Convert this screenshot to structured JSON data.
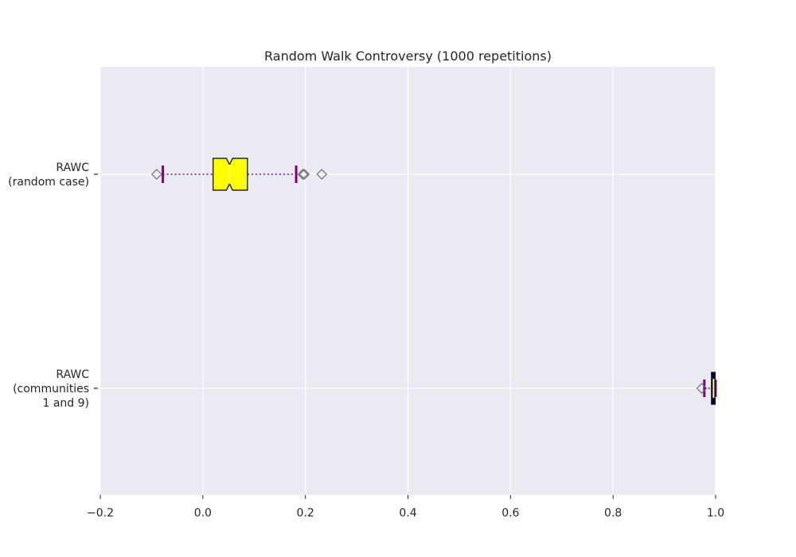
{
  "chart_data": {
    "type": "boxplot",
    "orientation": "horizontal",
    "title": "Random Walk Controversy (1000 repetitions)",
    "xlabel": "",
    "ylabel": "",
    "xlim": [
      -0.2,
      1.0
    ],
    "xticks": [
      -0.2,
      0.0,
      0.2,
      0.4,
      0.6,
      0.8,
      1.0
    ],
    "xtick_labels": [
      "−0.2",
      "0.0",
      "0.2",
      "0.4",
      "0.6",
      "0.8",
      "1.0"
    ],
    "grid": true,
    "notched": true,
    "categories": [
      {
        "label_lines": [
          "RAWC",
          "(random case)"
        ]
      },
      {
        "label_lines": [
          "RAWC",
          "(communities",
          "1 and 9)"
        ]
      }
    ],
    "boxes": [
      {
        "whisker_low": -0.078,
        "q1": 0.02,
        "median": 0.052,
        "q3": 0.087,
        "whisker_high": 0.182,
        "notch_low": 0.046,
        "notch_high": 0.058,
        "outliers": [
          -0.09,
          0.195,
          0.198,
          0.232
        ],
        "fill_color": "#ffff00"
      },
      {
        "whisker_low": 0.978,
        "q1": 0.992,
        "median": 0.996,
        "q3": 0.999,
        "whisker_high": 1.0,
        "notch_low": 0.995,
        "notch_high": 0.997,
        "outliers": [
          0.973
        ],
        "fill_color": "#00007f"
      }
    ],
    "colors": {
      "background": "#eaeaf2",
      "grid": "#ffffff",
      "whisker": "#800080",
      "median": "#ffff66",
      "outlier_edge": "#6f6f6f"
    }
  }
}
